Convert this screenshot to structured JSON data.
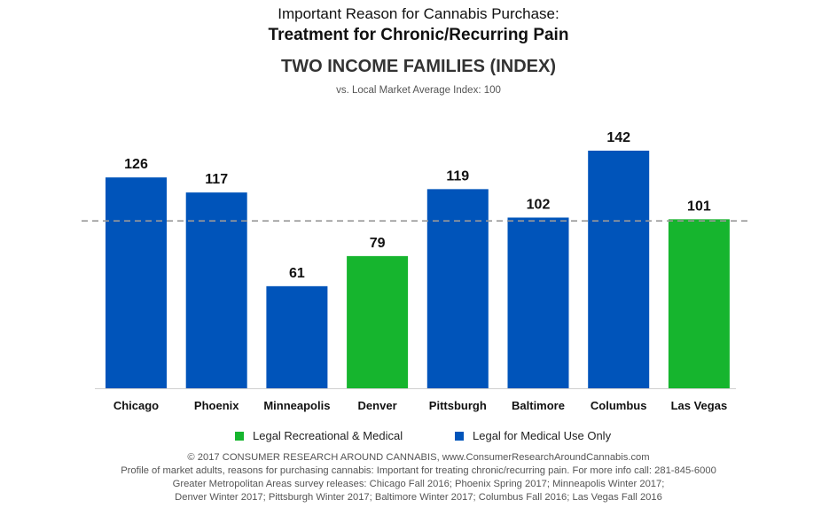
{
  "header": {
    "supertitle": "Important Reason for Cannabis Purchase:",
    "title": "Treatment for Chronic/Recurring Pain",
    "subtitle": "TWO INCOME FAMILIES (INDEX)",
    "note": "vs. Local Market Average Index: 100"
  },
  "chart_data": {
    "type": "bar",
    "categories": [
      "Chicago",
      "Phoenix",
      "Minneapolis",
      "Denver",
      "Pittsburgh",
      "Baltimore",
      "Columbus",
      "Las Vegas"
    ],
    "values": [
      126,
      117,
      61,
      79,
      119,
      102,
      142,
      101
    ],
    "status": [
      "medical",
      "medical",
      "medical",
      "recreational",
      "medical",
      "medical",
      "medical",
      "recreational"
    ],
    "reference_line": 100,
    "ylim": [
      0,
      150
    ],
    "grid": false,
    "legend_placement": "bottom",
    "colors": {
      "medical": "#0054BA",
      "recreational": "#16B52E",
      "reference": "#999999"
    }
  },
  "legend": {
    "recreational_label": "Legal Recreational & Medical",
    "medical_label": "Legal for Medical Use Only"
  },
  "footer": {
    "line1": "© 2017 CONSUMER RESEARCH AROUND CANNABIS, www.ConsumerResearchAroundCannabis.com",
    "line2": "Profile of market adults, reasons for purchasing cannabis: Important for treating chronic/recurring pain. For more info call: 281-845-6000",
    "line3": "Greater Metropolitan Areas survey releases: Chicago Fall 2016; Phoenix Spring 2017; Minneapolis Winter 2017;",
    "line4": "Denver Winter 2017; Pittsburgh Winter 2017; Baltimore Winter 2017; Columbus Fall 2016; Las Vegas Fall 2016"
  }
}
